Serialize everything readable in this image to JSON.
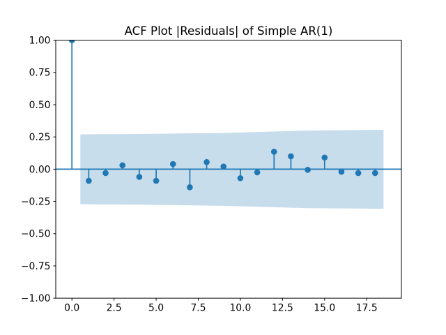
{
  "chart_data": {
    "type": "stem",
    "title": "ACF Plot |Residuals| of Simple AR(1)",
    "xlabel": "",
    "ylabel": "",
    "grid": false,
    "legend": null,
    "xlim": [
      -0.96,
      19.56
    ],
    "ylim": [
      -1.0,
      1.0
    ],
    "xticks": [
      0,
      2.5,
      5,
      7.5,
      10,
      12.5,
      15,
      17.5
    ],
    "xtick_labels": [
      "0.0",
      "2.5",
      "5.0",
      "7.5",
      "10.0",
      "12.5",
      "15.0",
      "17.5"
    ],
    "yticks": [
      1.0,
      0.75,
      0.5,
      0.25,
      0.0,
      -0.25,
      -0.5,
      -0.75,
      -1.0
    ],
    "ytick_labels": [
      "1.00",
      "0.75",
      "0.50",
      "0.25",
      "0.00",
      "−0.25",
      "−0.50",
      "−0.75",
      "−1.00"
    ],
    "lags": [
      0,
      1,
      2,
      3,
      4,
      5,
      6,
      7,
      8,
      9,
      10,
      11,
      12,
      13,
      14,
      15,
      16,
      17,
      18
    ],
    "values": [
      1.0,
      -0.09,
      -0.03,
      0.03,
      -0.06,
      -0.09,
      0.04,
      -0.14,
      0.055,
      0.02,
      -0.07,
      -0.025,
      0.135,
      0.1,
      -0.005,
      0.09,
      -0.02,
      -0.03,
      -0.03
    ],
    "confidence_band": {
      "x": [
        0.5,
        4,
        9,
        14,
        18.5
      ],
      "upper": [
        0.27,
        0.273,
        0.281,
        0.3,
        0.305
      ],
      "lower": [
        -0.272,
        -0.275,
        -0.284,
        -0.302,
        -0.307
      ]
    },
    "colors": {
      "stem": "#1f77b4",
      "marker": "#1f77b4",
      "band": "rgba(31,119,180,0.25)",
      "zero_line": "#1f77b4",
      "axis": "#000000",
      "text": "#000000",
      "background": "#ffffff"
    }
  }
}
